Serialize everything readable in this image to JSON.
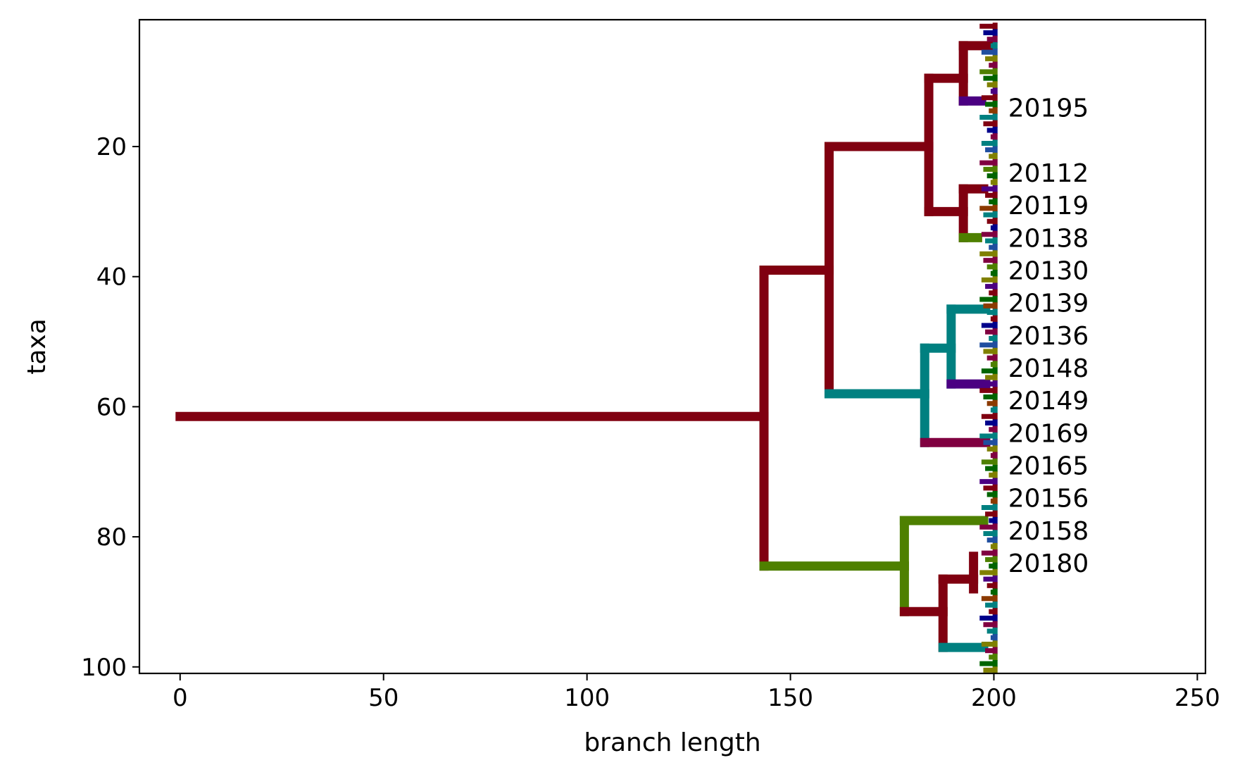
{
  "chart_data": {
    "type": "dendrogram",
    "xlabel": "branch length",
    "ylabel": "taxa",
    "xlim": [
      -10,
      252
    ],
    "ylim": [
      101,
      0.5
    ],
    "xticks": [
      0,
      50,
      100,
      150,
      200,
      250
    ],
    "yticks": [
      20,
      40,
      60,
      80,
      100
    ],
    "leaf_labels": [
      {
        "label": "20195",
        "y": 14
      },
      {
        "label": "20112",
        "y": 24
      },
      {
        "label": "20119",
        "y": 29
      },
      {
        "label": "20138",
        "y": 34
      },
      {
        "label": "20130",
        "y": 39
      },
      {
        "label": "20139",
        "y": 44
      },
      {
        "label": "20136",
        "y": 49
      },
      {
        "label": "20148",
        "y": 54
      },
      {
        "label": "20149",
        "y": 59
      },
      {
        "label": "20169",
        "y": 64
      },
      {
        "label": "20165",
        "y": 69
      },
      {
        "label": "20156",
        "y": 74
      },
      {
        "label": "20158",
        "y": 79
      },
      {
        "label": "20180",
        "y": 84
      }
    ],
    "branches": [
      {
        "x1": 0,
        "y1": 61.5,
        "x2": 143.5,
        "y2": 61.5,
        "color": "#800010"
      },
      {
        "x1": 143.5,
        "y1": 39,
        "x2": 143.5,
        "y2": 84.5,
        "color": "#800010"
      },
      {
        "x1": 143.5,
        "y1": 39,
        "x2": 159.5,
        "y2": 39,
        "color": "#800010"
      },
      {
        "x1": 159.5,
        "y1": 20,
        "x2": 159.5,
        "y2": 58,
        "color": "#800010"
      },
      {
        "x1": 159.5,
        "y1": 20,
        "x2": 184,
        "y2": 20,
        "color": "#800010"
      },
      {
        "x1": 184,
        "y1": 9.5,
        "x2": 184,
        "y2": 30,
        "color": "#800010"
      },
      {
        "x1": 184,
        "y1": 9.5,
        "x2": 192.5,
        "y2": 9.5,
        "color": "#800010"
      },
      {
        "x1": 192.5,
        "y1": 4.5,
        "x2": 192.5,
        "y2": 13,
        "color": "#800010"
      },
      {
        "x1": 192.5,
        "y1": 4.5,
        "x2": 199.5,
        "y2": 4.5,
        "color": "#800010"
      },
      {
        "x1": 192.5,
        "y1": 13,
        "x2": 197,
        "y2": 13,
        "color": "#4B0082"
      },
      {
        "x1": 184,
        "y1": 30,
        "x2": 192.5,
        "y2": 30,
        "color": "#800010"
      },
      {
        "x1": 192.5,
        "y1": 26.5,
        "x2": 192.5,
        "y2": 34,
        "color": "#800010"
      },
      {
        "x1": 192.5,
        "y1": 26.5,
        "x2": 197.5,
        "y2": 26.5,
        "color": "#800010"
      },
      {
        "x1": 192.5,
        "y1": 34,
        "x2": 196,
        "y2": 34,
        "color": "#4E8000"
      },
      {
        "x1": 159.5,
        "y1": 58,
        "x2": 183,
        "y2": 58,
        "color": "#008080"
      },
      {
        "x1": 183,
        "y1": 51,
        "x2": 183,
        "y2": 65.5,
        "color": "#008080"
      },
      {
        "x1": 183,
        "y1": 51,
        "x2": 189.5,
        "y2": 51,
        "color": "#008080"
      },
      {
        "x1": 189.5,
        "y1": 45,
        "x2": 189.5,
        "y2": 56.5,
        "color": "#008080"
      },
      {
        "x1": 189.5,
        "y1": 45,
        "x2": 198,
        "y2": 45,
        "color": "#008080"
      },
      {
        "x1": 189.5,
        "y1": 56.5,
        "x2": 198,
        "y2": 56.5,
        "color": "#4B0082"
      },
      {
        "x1": 183,
        "y1": 65.5,
        "x2": 198,
        "y2": 65.5,
        "color": "#800040"
      },
      {
        "x1": 143.5,
        "y1": 84.5,
        "x2": 178,
        "y2": 84.5,
        "color": "#4E8000"
      },
      {
        "x1": 178,
        "y1": 77.5,
        "x2": 178,
        "y2": 91.5,
        "color": "#4E8000"
      },
      {
        "x1": 178,
        "y1": 77.5,
        "x2": 197.5,
        "y2": 77.5,
        "color": "#4E8000"
      },
      {
        "x1": 178,
        "y1": 91.5,
        "x2": 187.5,
        "y2": 91.5,
        "color": "#800010"
      },
      {
        "x1": 187.5,
        "y1": 86.5,
        "x2": 187.5,
        "y2": 97,
        "color": "#800010"
      },
      {
        "x1": 187.5,
        "y1": 86.5,
        "x2": 195,
        "y2": 86.5,
        "color": "#800010"
      },
      {
        "x1": 195,
        "y1": 83,
        "x2": 195,
        "y2": 88,
        "color": "#800010"
      },
      {
        "x1": 187.5,
        "y1": 97,
        "x2": 197.5,
        "y2": 97,
        "color": "#008080"
      }
    ],
    "tip_colors": [
      "#800010",
      "#4E8000",
      "#008080",
      "#4B0082",
      "#800040",
      "#8B3A00",
      "#808000",
      "#00008B",
      "#006400",
      "#1F4E9F"
    ]
  }
}
